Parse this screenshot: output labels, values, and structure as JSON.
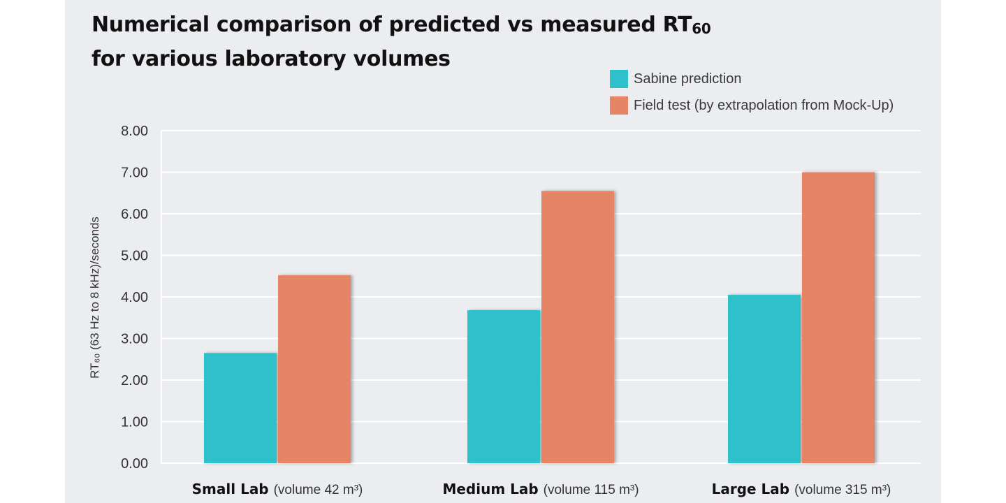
{
  "chart_data": {
    "type": "bar",
    "title_lines": [
      "Numerical comparison of predicted vs measured RT",
      "for various laboratory volumes"
    ],
    "title_subscript": "60",
    "categories": [
      "Small Lab",
      "Medium Lab",
      "Large Lab"
    ],
    "category_details": [
      "(volume 42 m³)",
      "(volume 115 m³)",
      "(volume 315 m³)"
    ],
    "series": [
      {
        "name": "Sabine prediction",
        "values": [
          2.65,
          3.68,
          4.05
        ]
      },
      {
        "name": "Field test (by extrapolation from Mock-Up)",
        "values": [
          4.52,
          6.55,
          7.0
        ]
      }
    ],
    "ylabel": "RT₆₀ (63 Hz to 8 kHz)/seconds",
    "ylim": [
      0,
      8
    ],
    "yticks": [
      "0.00",
      "1.00",
      "2.00",
      "3.00",
      "4.00",
      "5.00",
      "6.00",
      "7.00",
      "8.00"
    ],
    "grid": true,
    "legend_position": "top-right"
  },
  "colors": {
    "sabine": "#2ec1c9",
    "field": "#e68466",
    "panel_bg": "#ebedf0",
    "grid": "#ffffff"
  }
}
